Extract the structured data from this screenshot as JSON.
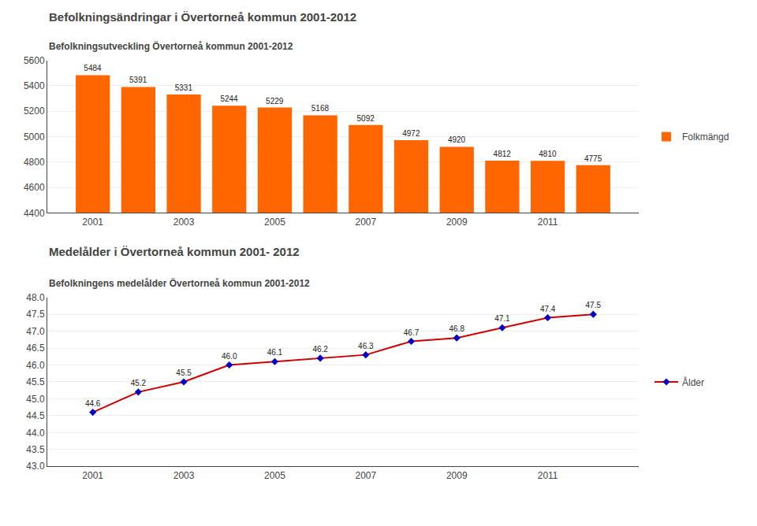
{
  "chart_data": [
    {
      "type": "bar",
      "title": "Befolkningsändringar i Övertorneå kommun 2001-2012",
      "subtitle": "Befolkningsutveckling Övertorneå kommun 2001-2012",
      "x": [
        2001,
        2002,
        2003,
        2004,
        2005,
        2006,
        2007,
        2008,
        2009,
        2010,
        2011,
        2012
      ],
      "series": [
        {
          "name": "Folkmängd",
          "color": "#FF6600",
          "values": [
            5484,
            5391,
            5331,
            5244,
            5229,
            5168,
            5092,
            4972,
            4920,
            4812,
            4810,
            4775
          ]
        }
      ],
      "xlim": [
        2000,
        2013
      ],
      "xticks": [
        2001,
        2003,
        2005,
        2007,
        2009,
        2011
      ],
      "ylim": [
        4400,
        5600
      ],
      "yticks": [
        4400,
        4600,
        4800,
        5000,
        5200,
        5400,
        5600
      ],
      "grid": true,
      "legend": "right",
      "data_labels": true
    },
    {
      "type": "line",
      "title": "Medelålder i Övertorneå kommun 2001- 2012",
      "subtitle": "Befolkningens medelålder Övertorneå kommun 2001-2012",
      "x": [
        2001,
        2002,
        2003,
        2004,
        2005,
        2006,
        2007,
        2008,
        2009,
        2010,
        2011,
        2012
      ],
      "series": [
        {
          "name": "Ålder",
          "color": "#CC0000",
          "colors": [
            "#0000CC",
            "#0000CC",
            "#0000CC",
            "#0000CC",
            "#0000CC",
            "#0000CC",
            "#0000CC",
            "#0000CC",
            "#0000CC",
            "#0000CC",
            "#0000CC",
            "#0000CC"
          ],
          "marker": "diamond",
          "line_style": "solid",
          "values": [
            44.6,
            45.2,
            45.5,
            46.0,
            46.1,
            46.2,
            46.3,
            46.7,
            46.8,
            47.1,
            47.4,
            47.5
          ],
          "value_labels": [
            "44.6",
            "45.2",
            "45.5",
            "46.0",
            "46.1",
            "46.2",
            "46.3",
            "46.7",
            "46.8",
            "47.1",
            "47.4",
            "47.5"
          ]
        }
      ],
      "xlim": [
        2000,
        2013
      ],
      "xticks": [
        2001,
        2003,
        2005,
        2007,
        2009,
        2011
      ],
      "ylim": [
        43,
        48
      ],
      "yticks": [
        {
          "value": 43,
          "label": "43.0"
        },
        {
          "value": 43.5,
          "label": "43.5"
        },
        {
          "value": 44,
          "label": "44.0"
        },
        {
          "value": 44.5,
          "label": "44.5"
        },
        {
          "value": 45,
          "label": "45.0"
        },
        {
          "value": 45.5,
          "label": "45.5"
        },
        {
          "value": 46,
          "label": "46.0"
        },
        {
          "value": 46.5,
          "label": "46.5"
        },
        {
          "value": 47,
          "label": "47.0"
        },
        {
          "value": 47.5,
          "label": "47.5"
        },
        {
          "value": 48,
          "label": "48.0"
        }
      ],
      "grid": true,
      "legend": "right",
      "data_labels": true
    }
  ]
}
